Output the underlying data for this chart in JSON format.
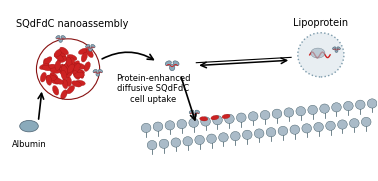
{
  "title": "",
  "bg_color": "#ffffff",
  "label_nanoassembly": "SQdFdC nanoassembly",
  "label_lipoprotein": "Lipoprotein",
  "label_albumin": "Albumin",
  "label_center": "Protein-enhanced\ndiffusive SQdFdC\ncell uptake",
  "color_red": "#cc2222",
  "color_blue_gray": "#8aaabb",
  "color_dark_gray": "#4a6070",
  "color_light_gray": "#aabbc8",
  "color_arrow": "#111111",
  "color_membrane": "#7a99aa",
  "color_membrane_dark": "#3a5560",
  "figsize": [
    3.78,
    1.81
  ],
  "dpi": 100
}
